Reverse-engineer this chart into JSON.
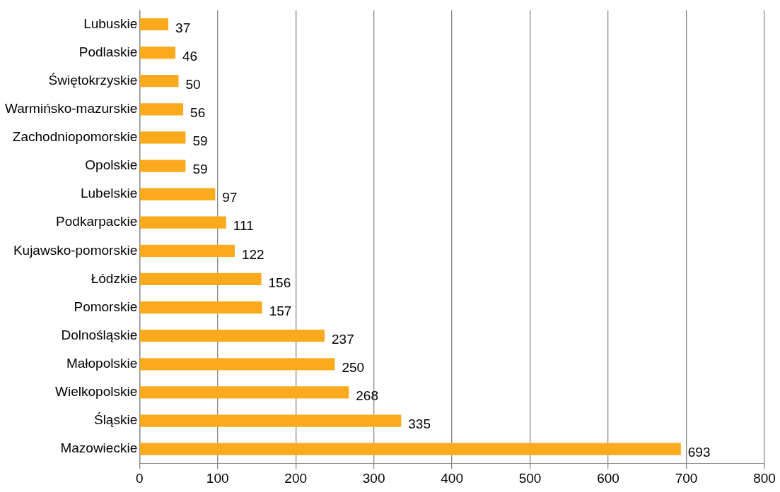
{
  "chart_data": {
    "type": "bar",
    "orientation": "horizontal",
    "categories": [
      "Lubuskie",
      "Podlaskie",
      "Świętokrzyskie",
      "Warmińsko-mazurskie",
      "Zachodniopomorskie",
      "Opolskie",
      "Lubelskie",
      "Podkarpackie",
      "Kujawsko-pomorskie",
      "Łódzkie",
      "Pomorskie",
      "Dolnośląskie",
      "Małopolskie",
      "Wielkopolskie",
      "Śląskie",
      "Mazowieckie"
    ],
    "values": [
      37,
      46,
      50,
      56,
      59,
      59,
      97,
      111,
      122,
      156,
      157,
      237,
      250,
      268,
      335,
      693
    ],
    "color": "#fbaa1e",
    "xlim": [
      0,
      800
    ],
    "xticks": [
      0,
      100,
      200,
      300,
      400,
      500,
      600,
      700,
      800
    ],
    "grid": "x",
    "data_labels": true,
    "legend": false
  }
}
